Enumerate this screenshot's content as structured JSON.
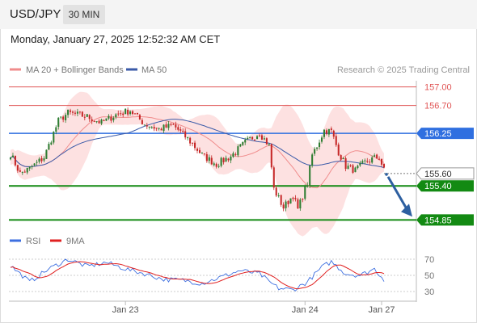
{
  "header": {
    "pair": "USD/JPY",
    "timeframe": "30 MIN",
    "datetime": "Monday, January 27, 2025 12:52:32 AM CET"
  },
  "legend": {
    "ma20_label": "MA 20 + Bollinger Bands",
    "ma50_label": "MA 50",
    "credit": "Research © 2025 Trading Central",
    "rsi_label": "RSI",
    "rsi_ma_label": "9MA"
  },
  "colors": {
    "up_candle": "#2e7d32",
    "down_candle": "#c62828",
    "bollinger_fill": "#fde1e1",
    "ma20": "#f08c8c",
    "ma50": "#3a5aa8",
    "resistance": "#e05555",
    "pivot": "#2f6fe0",
    "support": "#138a13",
    "last_price": "#333333",
    "arrow": "#2d5fa0",
    "rsi": "#3d6fe0",
    "rsi_ma": "#e02020"
  },
  "chart_data": [
    {
      "type": "candlestick",
      "title": "USD/JPY 30 MIN",
      "x_tick_labels": [
        "Jan 23",
        "Jan 24",
        "Jan 27"
      ],
      "ylim": [
        154.75,
        157.1
      ],
      "levels": [
        {
          "label": "157.00",
          "value": 157.0,
          "kind": "resistance"
        },
        {
          "label": "156.70",
          "value": 156.7,
          "kind": "resistance"
        },
        {
          "label": "156.25",
          "value": 156.25,
          "kind": "pivot"
        },
        {
          "label": "155.60",
          "value": 155.6,
          "kind": "last"
        },
        {
          "label": "155.40",
          "value": 155.4,
          "kind": "support"
        },
        {
          "label": "154.85",
          "value": 154.85,
          "kind": "support"
        }
      ],
      "anchors": [
        {
          "i": 0,
          "v": 155.92
        },
        {
          "i": 4,
          "v": 155.6
        },
        {
          "i": 8,
          "v": 155.68
        },
        {
          "i": 14,
          "v": 155.86
        },
        {
          "i": 20,
          "v": 156.45
        },
        {
          "i": 24,
          "v": 156.58
        },
        {
          "i": 32,
          "v": 156.52
        },
        {
          "i": 38,
          "v": 156.42
        },
        {
          "i": 44,
          "v": 156.55
        },
        {
          "i": 50,
          "v": 156.62
        },
        {
          "i": 56,
          "v": 156.4
        },
        {
          "i": 62,
          "v": 156.32
        },
        {
          "i": 68,
          "v": 156.38
        },
        {
          "i": 74,
          "v": 156.16
        },
        {
          "i": 80,
          "v": 155.9
        },
        {
          "i": 86,
          "v": 155.75
        },
        {
          "i": 92,
          "v": 155.88
        },
        {
          "i": 98,
          "v": 156.1
        },
        {
          "i": 104,
          "v": 156.26
        },
        {
          "i": 108,
          "v": 156.05
        },
        {
          "i": 110,
          "v": 155.35
        },
        {
          "i": 114,
          "v": 155.05
        },
        {
          "i": 118,
          "v": 155.25
        },
        {
          "i": 120,
          "v": 155.02
        },
        {
          "i": 124,
          "v": 155.45
        },
        {
          "i": 126,
          "v": 155.9
        },
        {
          "i": 128,
          "v": 156.05
        },
        {
          "i": 131,
          "v": 156.3
        },
        {
          "i": 134,
          "v": 156.28
        },
        {
          "i": 137,
          "v": 155.95
        },
        {
          "i": 140,
          "v": 155.72
        },
        {
          "i": 144,
          "v": 155.65
        },
        {
          "i": 148,
          "v": 155.78
        },
        {
          "i": 152,
          "v": 155.85
        },
        {
          "i": 154,
          "v": 155.86
        },
        {
          "i": 156,
          "v": 155.65
        }
      ],
      "candle_count": 157,
      "projection": {
        "from": 155.6,
        "to": 154.85
      }
    },
    {
      "type": "line",
      "title": "RSI",
      "ylim": [
        25,
        75
      ],
      "y_tick_labels": [
        "70",
        "50",
        "30"
      ],
      "y_ticks": [
        70,
        50,
        30
      ],
      "anchors": [
        {
          "i": 0,
          "v": 62
        },
        {
          "i": 8,
          "v": 42
        },
        {
          "i": 16,
          "v": 58
        },
        {
          "i": 24,
          "v": 70
        },
        {
          "i": 32,
          "v": 61
        },
        {
          "i": 40,
          "v": 66
        },
        {
          "i": 48,
          "v": 58
        },
        {
          "i": 56,
          "v": 52
        },
        {
          "i": 64,
          "v": 45
        },
        {
          "i": 72,
          "v": 44
        },
        {
          "i": 80,
          "v": 40
        },
        {
          "i": 88,
          "v": 48
        },
        {
          "i": 96,
          "v": 56
        },
        {
          "i": 104,
          "v": 52
        },
        {
          "i": 108,
          "v": 42
        },
        {
          "i": 112,
          "v": 34
        },
        {
          "i": 118,
          "v": 32
        },
        {
          "i": 124,
          "v": 42
        },
        {
          "i": 130,
          "v": 60
        },
        {
          "i": 134,
          "v": 67
        },
        {
          "i": 140,
          "v": 52
        },
        {
          "i": 146,
          "v": 50
        },
        {
          "i": 152,
          "v": 58
        },
        {
          "i": 156,
          "v": 45
        }
      ]
    }
  ]
}
